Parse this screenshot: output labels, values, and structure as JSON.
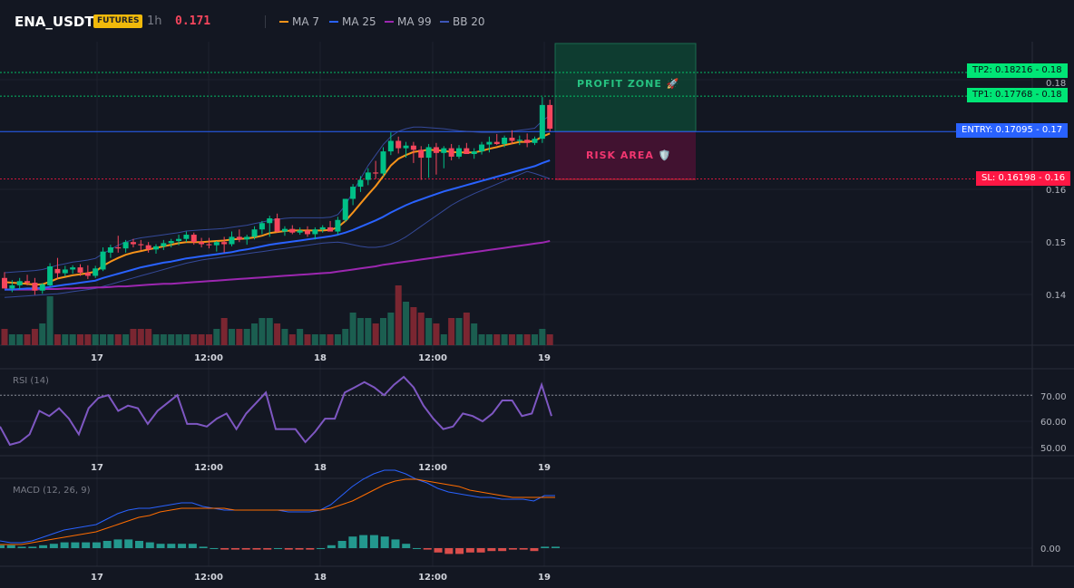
{
  "header": {
    "symbol": "ENA_USDT",
    "badge": "FUTURES",
    "interval": "1h",
    "last_price": "0.171",
    "legend": [
      {
        "label": "MA 7",
        "color": "#f7931a"
      },
      {
        "label": "MA 25",
        "color": "#2962ff"
      },
      {
        "label": "MA 99",
        "color": "#9c27b0"
      },
      {
        "label": "BB 20",
        "color": "#3d56b8"
      }
    ]
  },
  "colors": {
    "up": "#089981",
    "down": "#f23645",
    "ma7": "#f7931a",
    "ma25": "#2962ff",
    "ma99": "#9c27b0",
    "bb": "#3d56b8",
    "rsi": "#7e57c2",
    "macd": "#2962ff",
    "signal": "#ff6d00"
  },
  "trade": {
    "profit_zone_label": "PROFIT ZONE 🚀",
    "risk_area_label": "RISK AREA 🛡️",
    "tp2_label": "TP2: 0.18216 - 0.18",
    "tp1_label": "TP1: 0.17768 - 0.18",
    "entry_label": "ENTRY: 0.17095 - 0.17",
    "sl_label": "SL: 0.16198 - 0.16",
    "tp2": 0.18216,
    "tp1": 0.17768,
    "entry": 0.17095,
    "sl": 0.16198
  },
  "price_axis": {
    "ticks": [
      "0.18",
      "0.16",
      "0.15",
      "0.14"
    ]
  },
  "time_axis": {
    "labels": [
      "17",
      "12:00",
      "18",
      "12:00",
      "19"
    ]
  },
  "rsi": {
    "title": "RSI (14)",
    "ticks": [
      "70.00",
      "60.00",
      "50.00"
    ],
    "level": 70
  },
  "macd": {
    "title": "MACD (12, 26, 9)",
    "ticks": [
      "0.00"
    ]
  },
  "chart_data": {
    "type": "candlestick",
    "candles": [
      [
        0.1432,
        0.1443,
        0.1415,
        0.1412
      ],
      [
        0.1412,
        0.1428,
        0.1405,
        0.1418
      ],
      [
        0.1418,
        0.1432,
        0.141,
        0.1426
      ],
      [
        0.1426,
        0.1438,
        0.1418,
        0.1423
      ],
      [
        0.1423,
        0.1432,
        0.14,
        0.1408
      ],
      [
        0.1408,
        0.1422,
        0.1402,
        0.142
      ],
      [
        0.1418,
        0.146,
        0.1416,
        0.1454
      ],
      [
        0.1449,
        0.147,
        0.143,
        0.1441
      ],
      [
        0.1441,
        0.1455,
        0.1435,
        0.1448
      ],
      [
        0.1448,
        0.1456,
        0.144,
        0.1452
      ],
      [
        0.1452,
        0.1458,
        0.1436,
        0.1442
      ],
      [
        0.1442,
        0.1456,
        0.143,
        0.1436
      ],
      [
        0.1436,
        0.1455,
        0.1432,
        0.145
      ],
      [
        0.1448,
        0.149,
        0.1445,
        0.1482
      ],
      [
        0.148,
        0.1495,
        0.147,
        0.149
      ],
      [
        0.149,
        0.1512,
        0.148,
        0.1488
      ],
      [
        0.1488,
        0.1504,
        0.148,
        0.15
      ],
      [
        0.15,
        0.1506,
        0.149,
        0.1496
      ],
      [
        0.1496,
        0.1504,
        0.1485,
        0.1494
      ],
      [
        0.1494,
        0.15,
        0.148,
        0.1486
      ],
      [
        0.1486,
        0.1496,
        0.1478,
        0.1492
      ],
      [
        0.1492,
        0.1504,
        0.1485,
        0.1498
      ],
      [
        0.1498,
        0.1506,
        0.149,
        0.1502
      ],
      [
        0.1502,
        0.1514,
        0.1494,
        0.1506
      ],
      [
        0.1506,
        0.152,
        0.15,
        0.1514
      ],
      [
        0.1514,
        0.1518,
        0.1495,
        0.15
      ],
      [
        0.15,
        0.1508,
        0.149,
        0.1496
      ],
      [
        0.1496,
        0.1508,
        0.1488,
        0.1494
      ],
      [
        0.1494,
        0.1502,
        0.1482,
        0.15
      ],
      [
        0.15,
        0.151,
        0.148,
        0.1496
      ],
      [
        0.1496,
        0.152,
        0.1492,
        0.151
      ],
      [
        0.151,
        0.1524,
        0.15,
        0.1505
      ],
      [
        0.1505,
        0.1514,
        0.1495,
        0.151
      ],
      [
        0.151,
        0.153,
        0.1505,
        0.1524
      ],
      [
        0.1524,
        0.154,
        0.1515,
        0.1536
      ],
      [
        0.1536,
        0.155,
        0.151,
        0.1545
      ],
      [
        0.1545,
        0.1554,
        0.1518,
        0.152
      ],
      [
        0.152,
        0.153,
        0.1512,
        0.1525
      ],
      [
        0.1525,
        0.1532,
        0.1515,
        0.1518
      ],
      [
        0.1518,
        0.1528,
        0.1514,
        0.1522
      ],
      [
        0.1522,
        0.153,
        0.151,
        0.1515
      ],
      [
        0.1515,
        0.1528,
        0.1505,
        0.1524
      ],
      [
        0.1524,
        0.1532,
        0.1518,
        0.1528
      ],
      [
        0.1528,
        0.154,
        0.1522,
        0.152
      ],
      [
        0.152,
        0.1548,
        0.1514,
        0.1542
      ],
      [
        0.1542,
        0.158,
        0.1538,
        0.1582
      ],
      [
        0.1582,
        0.161,
        0.157,
        0.1605
      ],
      [
        0.1605,
        0.1625,
        0.1595,
        0.1618
      ],
      [
        0.1618,
        0.164,
        0.1608,
        0.1632
      ],
      [
        0.1632,
        0.1654,
        0.162,
        0.163
      ],
      [
        0.163,
        0.168,
        0.1625,
        0.1672
      ],
      [
        0.1672,
        0.1708,
        0.1665,
        0.1692
      ],
      [
        0.1692,
        0.17,
        0.1668,
        0.1678
      ],
      [
        0.1678,
        0.169,
        0.166,
        0.1683
      ],
      [
        0.1683,
        0.169,
        0.165,
        0.1675
      ],
      [
        0.1675,
        0.1682,
        0.1618,
        0.166
      ],
      [
        0.166,
        0.1686,
        0.1622,
        0.168
      ],
      [
        0.168,
        0.1688,
        0.1628,
        0.1669
      ],
      [
        0.1669,
        0.1682,
        0.164,
        0.1678
      ],
      [
        0.1678,
        0.1686,
        0.1655,
        0.1662
      ],
      [
        0.1662,
        0.1684,
        0.1658,
        0.1678
      ],
      [
        0.1678,
        0.1688,
        0.167,
        0.1667
      ],
      [
        0.1667,
        0.1678,
        0.1658,
        0.1672
      ],
      [
        0.1672,
        0.169,
        0.1666,
        0.1685
      ],
      [
        0.1685,
        0.17,
        0.167,
        0.169
      ],
      [
        0.169,
        0.1705,
        0.1684,
        0.1686
      ],
      [
        0.1686,
        0.1702,
        0.168,
        0.1698
      ],
      [
        0.1698,
        0.1712,
        0.1686,
        0.1692
      ],
      [
        0.1692,
        0.1702,
        0.1684,
        0.1694
      ],
      [
        0.1694,
        0.1706,
        0.168,
        0.1688
      ],
      [
        0.1688,
        0.17,
        0.1684,
        0.1696
      ],
      [
        0.1696,
        0.1775,
        0.1688,
        0.176
      ],
      [
        0.176,
        0.177,
        0.171,
        0.1715
      ]
    ],
    "ma7": [
      0.1424,
      0.1423,
      0.1422,
      0.1421,
      0.1419,
      0.142,
      0.1425,
      0.1431,
      0.1434,
      0.1437,
      0.1439,
      0.1441,
      0.1444,
      0.1455,
      0.1463,
      0.147,
      0.1476,
      0.148,
      0.1483,
      0.1486,
      0.1489,
      0.1492,
      0.1495,
      0.1498,
      0.15,
      0.15,
      0.15,
      0.1501,
      0.1502,
      0.1503,
      0.1505,
      0.1506,
      0.1507,
      0.1509,
      0.1512,
      0.1517,
      0.1519,
      0.1521,
      0.1522,
      0.1522,
      0.1522,
      0.1522,
      0.1522,
      0.1523,
      0.1528,
      0.154,
      0.1556,
      0.1573,
      0.159,
      0.1606,
      0.1625,
      0.1645,
      0.1658,
      0.1665,
      0.1671,
      0.1673,
      0.1675,
      0.1674,
      0.1673,
      0.1671,
      0.167,
      0.167,
      0.167,
      0.1673,
      0.1677,
      0.168,
      0.1684,
      0.1687,
      0.169,
      0.169,
      0.1692,
      0.17,
      0.1706
    ],
    "ma25": [
      0.141,
      0.141,
      0.1411,
      0.1412,
      0.1412,
      0.1413,
      0.1415,
      0.1417,
      0.1419,
      0.1421,
      0.1423,
      0.1425,
      0.1427,
      0.1432,
      0.1436,
      0.144,
      0.1444,
      0.1448,
      0.1452,
      0.1455,
      0.1458,
      0.1461,
      0.1463,
      0.1466,
      0.1469,
      0.1471,
      0.1473,
      0.1475,
      0.1477,
      0.1479,
      0.1481,
      0.1484,
      0.1486,
      0.1489,
      0.1492,
      0.1495,
      0.1497,
      0.1499,
      0.1501,
      0.1503,
      0.1505,
      0.1507,
      0.1509,
      0.1511,
      0.1514,
      0.1518,
      0.1523,
      0.1529,
      0.1535,
      0.1541,
      0.1548,
      0.1556,
      0.1563,
      0.157,
      0.1576,
      0.1581,
      0.1586,
      0.1591,
      0.1596,
      0.16,
      0.1604,
      0.1608,
      0.1612,
      0.1616,
      0.162,
      0.1624,
      0.1628,
      0.1632,
      0.1636,
      0.164,
      0.1644,
      0.165,
      0.1655
    ],
    "ma99": [
      0.141,
      0.141,
      0.141,
      0.141,
      0.141,
      0.1411,
      0.1411,
      0.1411,
      0.1412,
      0.1412,
      0.1413,
      0.1413,
      0.1414,
      0.1414,
      0.1415,
      0.1416,
      0.1416,
      0.1417,
      0.1418,
      0.1419,
      0.142,
      0.1421,
      0.1421,
      0.1422,
      0.1423,
      0.1424,
      0.1425,
      0.1426,
      0.1427,
      0.1428,
      0.1429,
      0.143,
      0.1431,
      0.1432,
      0.1433,
      0.1434,
      0.1435,
      0.1436,
      0.1437,
      0.1438,
      0.1439,
      0.144,
      0.1441,
      0.1442,
      0.1444,
      0.1446,
      0.1448,
      0.145,
      0.1452,
      0.1454,
      0.1457,
      0.1459,
      0.1461,
      0.1463,
      0.1465,
      0.1467,
      0.1469,
      0.1471,
      0.1473,
      0.1475,
      0.1477,
      0.1479,
      0.1481,
      0.1483,
      0.1485,
      0.1487,
      0.1489,
      0.1491,
      0.1493,
      0.1495,
      0.1497,
      0.1499,
      0.1502
    ],
    "bb_upper": [
      0.1442,
      0.1443,
      0.1444,
      0.1445,
      0.1446,
      0.1448,
      0.1452,
      0.1456,
      0.1459,
      0.1462,
      0.1464,
      0.1466,
      0.1469,
      0.1478,
      0.1486,
      0.1494,
      0.15,
      0.1505,
      0.1508,
      0.151,
      0.1512,
      0.1514,
      0.1516,
      0.1518,
      0.1521,
      0.1522,
      0.1523,
      0.1524,
      0.1525,
      0.1526,
      0.1528,
      0.153,
      0.1532,
      0.1535,
      0.1538,
      0.1541,
      0.1543,
      0.1545,
      0.1546,
      0.1546,
      0.1546,
      0.1546,
      0.1546,
      0.1547,
      0.1552,
      0.157,
      0.1595,
      0.162,
      0.1645,
      0.1665,
      0.1685,
      0.17,
      0.171,
      0.1715,
      0.1718,
      0.1718,
      0.1717,
      0.1716,
      0.1715,
      0.1713,
      0.1711,
      0.171,
      0.1709,
      0.1708,
      0.1708,
      0.1708,
      0.1709,
      0.171,
      0.1712,
      0.1714,
      0.1716,
      0.173,
      0.174
    ],
    "bb_lower": [
      0.1395,
      0.1396,
      0.1397,
      0.1398,
      0.1399,
      0.14,
      0.1401,
      0.1402,
      0.1404,
      0.1406,
      0.1408,
      0.141,
      0.1412,
      0.1416,
      0.142,
      0.1424,
      0.1428,
      0.1432,
      0.1436,
      0.144,
      0.1444,
      0.1448,
      0.1452,
      0.1456,
      0.146,
      0.1463,
      0.1466,
      0.1468,
      0.147,
      0.1472,
      0.1474,
      0.1476,
      0.1478,
      0.148,
      0.1482,
      0.1484,
      0.1486,
      0.1488,
      0.149,
      0.1492,
      0.1494,
      0.1496,
      0.1498,
      0.1499,
      0.15,
      0.1498,
      0.1495,
      0.1492,
      0.149,
      0.149,
      0.1492,
      0.1496,
      0.1502,
      0.151,
      0.152,
      0.153,
      0.154,
      0.155,
      0.156,
      0.157,
      0.1578,
      0.1585,
      0.1592,
      0.1598,
      0.1604,
      0.161,
      0.1616,
      0.1622,
      0.1628,
      0.1634,
      0.163,
      0.1625,
      0.162
    ],
    "volume": [
      3,
      2,
      2,
      2,
      3,
      4,
      9,
      2,
      2,
      2,
      2,
      2,
      2,
      2,
      2,
      2,
      2,
      3,
      3,
      3,
      2,
      2,
      2,
      2,
      2,
      2,
      2,
      2,
      3,
      5,
      3,
      3,
      3,
      4,
      5,
      5,
      4,
      3,
      2,
      3,
      2,
      2,
      2,
      2,
      2,
      3,
      6,
      5,
      5,
      4,
      5,
      6,
      11,
      8,
      7,
      6,
      5,
      4,
      2,
      5,
      5,
      6,
      4,
      2,
      2,
      2,
      2,
      2,
      2,
      2,
      2,
      3,
      2
    ],
    "rsi": [
      58,
      51,
      52,
      55,
      64,
      62,
      65,
      61,
      55,
      65,
      69,
      70,
      64,
      66,
      65,
      59,
      64,
      67,
      70,
      59,
      59,
      58,
      61,
      63,
      57,
      63,
      67,
      71,
      57,
      57,
      57,
      52,
      56,
      61,
      61,
      71,
      73,
      75,
      73,
      70,
      74,
      77,
      73,
      66,
      61,
      57,
      58,
      63,
      62,
      60,
      63,
      68,
      68,
      62,
      63,
      74,
      62
    ],
    "macd": [
      0.0004,
      0.0003,
      0.0003,
      0.0004,
      0.0006,
      0.0008,
      0.001,
      0.0011,
      0.0012,
      0.0013,
      0.0016,
      0.0019,
      0.0021,
      0.0022,
      0.0022,
      0.0023,
      0.0024,
      0.0025,
      0.0025,
      0.0023,
      0.0022,
      0.0021,
      0.0021,
      0.0021,
      0.0021,
      0.0021,
      0.0021,
      0.002,
      0.002,
      0.002,
      0.0021,
      0.0024,
      0.0029,
      0.0034,
      0.0038,
      0.0041,
      0.0043,
      0.0043,
      0.0041,
      0.0038,
      0.0036,
      0.0033,
      0.0031,
      0.003,
      0.0029,
      0.0028,
      0.0028,
      0.0027,
      0.0027,
      0.0027,
      0.0026,
      0.0029,
      0.0029
    ],
    "signal": [
      0.0002,
      0.0002,
      0.0002,
      0.0003,
      0.0004,
      0.0005,
      0.0006,
      0.0007,
      0.0008,
      0.0009,
      0.0011,
      0.0013,
      0.0015,
      0.0017,
      0.0018,
      0.002,
      0.0021,
      0.0022,
      0.0022,
      0.0022,
      0.0022,
      0.0022,
      0.0021,
      0.0021,
      0.0021,
      0.0021,
      0.0021,
      0.0021,
      0.0021,
      0.0021,
      0.0021,
      0.0022,
      0.0024,
      0.0026,
      0.0029,
      0.0032,
      0.0035,
      0.0037,
      0.0038,
      0.0038,
      0.0037,
      0.0036,
      0.0035,
      0.0034,
      0.0032,
      0.0031,
      0.003,
      0.0029,
      0.0028,
      0.0028,
      0.0028,
      0.0028,
      0.0028
    ],
    "hist": [
      2,
      2,
      1,
      1,
      2,
      3,
      4,
      4,
      4,
      4,
      5,
      6,
      6,
      5,
      4,
      3,
      3,
      3,
      3,
      1,
      0,
      -1,
      -1,
      -1,
      -1,
      -1,
      0,
      -1,
      -1,
      -1,
      0,
      2,
      5,
      8,
      9,
      9,
      8,
      6,
      3,
      0,
      -1,
      -3,
      -4,
      -4,
      -3,
      -3,
      -2,
      -2,
      -1,
      -1,
      -2,
      1,
      1
    ]
  }
}
